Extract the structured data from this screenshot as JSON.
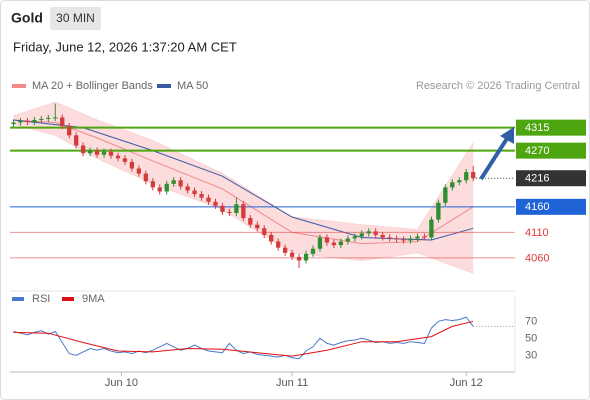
{
  "header": {
    "symbol": "Gold",
    "interval": "30 MIN",
    "timestamp": "Friday, June 12, 2026 1:37:20 AM CET"
  },
  "chart_data": [
    {
      "type": "candlestick",
      "credit": "Research © 2026 Trading Central",
      "xlim": [
        -0.5,
        72
      ],
      "ylim": [
        4005,
        4375
      ],
      "up_color": "#2f8f2f",
      "down_color": "#d43c3c",
      "open": [
        4322,
        4325,
        4328,
        4326,
        4330,
        4332,
        4334,
        4335,
        4318,
        4300,
        4280,
        4265,
        4270,
        4262,
        4268,
        4260,
        4255,
        4248,
        4235,
        4225,
        4210,
        4198,
        4190,
        4205,
        4212,
        4200,
        4192,
        4185,
        4178,
        4170,
        4162,
        4150,
        4148,
        4165,
        4138,
        4125,
        4118,
        4105,
        4092,
        4080,
        4070,
        4062,
        4055,
        4068,
        4078,
        4100,
        4090,
        4085,
        4092,
        4098,
        4102,
        4108,
        4112,
        4105,
        4100,
        4098,
        4096,
        4094,
        4098,
        4102,
        4100,
        4135,
        4168,
        4198,
        4208,
        4212,
        4228
      ],
      "high": [
        4331,
        4334,
        4334,
        4336,
        4338,
        4340,
        4362,
        4341,
        4324,
        4306,
        4286,
        4276,
        4276,
        4274,
        4274,
        4266,
        4261,
        4254,
        4241,
        4231,
        4216,
        4204,
        4211,
        4218,
        4218,
        4206,
        4198,
        4191,
        4184,
        4176,
        4168,
        4156,
        4178,
        4171,
        4144,
        4131,
        4124,
        4111,
        4098,
        4086,
        4076,
        4068,
        4074,
        4084,
        4106,
        4106,
        4096,
        4098,
        4104,
        4108,
        4114,
        4118,
        4118,
        4111,
        4106,
        4104,
        4102,
        4104,
        4108,
        4108,
        4141,
        4174,
        4204,
        4214,
        4218,
        4234,
        4240
      ],
      "low": [
        4316,
        4319,
        4320,
        4320,
        4324,
        4326,
        4328,
        4312,
        4294,
        4274,
        4259,
        4259,
        4256,
        4256,
        4254,
        4249,
        4242,
        4229,
        4219,
        4204,
        4192,
        4184,
        4184,
        4199,
        4194,
        4186,
        4179,
        4172,
        4164,
        4156,
        4144,
        4142,
        4142,
        4132,
        4119,
        4112,
        4099,
        4086,
        4074,
        4064,
        4056,
        4040,
        4049,
        4062,
        4072,
        4084,
        4079,
        4079,
        4086,
        4092,
        4096,
        4102,
        4099,
        4094,
        4092,
        4090,
        4088,
        4088,
        4092,
        4094,
        4094,
        4129,
        4162,
        4192,
        4202,
        4206,
        4210
      ],
      "close": [
        4325,
        4328,
        4326,
        4330,
        4332,
        4334,
        4335,
        4318,
        4300,
        4280,
        4265,
        4270,
        4262,
        4268,
        4260,
        4255,
        4248,
        4235,
        4225,
        4210,
        4198,
        4190,
        4205,
        4212,
        4200,
        4192,
        4185,
        4178,
        4170,
        4162,
        4150,
        4148,
        4165,
        4138,
        4125,
        4118,
        4105,
        4092,
        4080,
        4070,
        4062,
        4055,
        4068,
        4078,
        4100,
        4090,
        4085,
        4092,
        4098,
        4102,
        4108,
        4112,
        4105,
        4100,
        4098,
        4096,
        4094,
        4098,
        4102,
        4100,
        4135,
        4168,
        4198,
        4208,
        4212,
        4228,
        4216
      ],
      "series": [
        {
          "name": "MA 20 + Bollinger Bands",
          "color": "#f08a8a",
          "band_color": "#fbd3d3",
          "x": [
            0,
            6,
            12,
            20,
            30,
            40,
            50,
            58,
            66
          ],
          "values": [
            4330,
            4325,
            4295,
            4250,
            4195,
            4110,
            4088,
            4092,
            4160
          ],
          "upper": [
            4338,
            4365,
            4330,
            4290,
            4225,
            4140,
            4125,
            4115,
            4285
          ],
          "lower": [
            4322,
            4300,
            4255,
            4205,
            4155,
            4070,
            4055,
            4070,
            4030
          ]
        },
        {
          "name": "MA 50",
          "color": "#3b5ba5",
          "x": [
            0,
            10,
            20,
            30,
            40,
            50,
            60,
            66
          ],
          "values": [
            4330,
            4315,
            4270,
            4220,
            4140,
            4100,
            4095,
            4118
          ]
        }
      ],
      "levels": [
        {
          "value": 4315,
          "color": "#4da60f",
          "line": "thick",
          "label": "box"
        },
        {
          "value": 4270,
          "color": "#4da60f",
          "line": "thick",
          "label": "box"
        },
        {
          "value": 4216,
          "color": "#333333",
          "line": "dotted",
          "label": "box"
        },
        {
          "value": 4160,
          "color": "#1f63d6",
          "line": "thin",
          "label": "box"
        },
        {
          "value": 4110,
          "color": "#e03a3a",
          "line": "thin",
          "label": "text"
        },
        {
          "value": 4060,
          "color": "#e03a3a",
          "line": "thin",
          "label": "text"
        }
      ]
    },
    {
      "type": "line",
      "xlim": [
        -0.5,
        72
      ],
      "ylim": [
        15,
        81
      ],
      "yticks": [
        70,
        50,
        30
      ],
      "xticks": [
        {
          "value": 15.5,
          "label": "Jun 10"
        },
        {
          "value": 40,
          "label": "Jun 11"
        },
        {
          "value": 65,
          "label": "Jun 12"
        }
      ],
      "series": [
        {
          "name": "RSI",
          "color": "#4a78c8",
          "values": [
            58,
            56,
            54,
            57,
            59,
            55,
            58,
            45,
            32,
            30,
            34,
            38,
            36,
            38,
            35,
            33,
            34,
            32,
            35,
            33,
            36,
            40,
            44,
            40,
            36,
            38,
            42,
            38,
            35,
            34,
            33,
            44,
            36,
            32,
            34,
            31,
            30,
            29,
            28,
            30,
            27,
            26,
            35,
            40,
            50,
            44,
            42,
            45,
            47,
            48,
            50,
            48,
            45,
            46,
            44,
            45,
            44,
            46,
            45,
            44,
            62,
            70,
            72,
            71,
            72,
            75,
            64
          ]
        },
        {
          "name": "9MA",
          "color": "#e01010",
          "x": [
            0,
            5,
            10,
            15,
            20,
            25,
            30,
            35,
            40,
            45,
            50,
            55,
            60,
            63,
            66
          ],
          "values": [
            57,
            56,
            45,
            35,
            34,
            38,
            37,
            33,
            29,
            36,
            46,
            46,
            52,
            64,
            70
          ]
        }
      ]
    }
  ]
}
